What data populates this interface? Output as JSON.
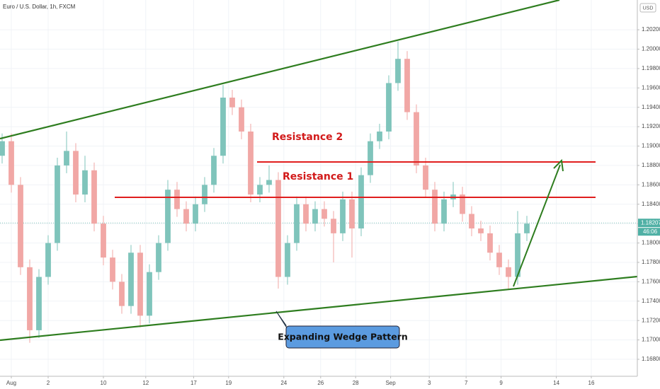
{
  "chart_data": {
    "type": "candlestick",
    "title": "Euro / U.S. Dollar, 1h, FXCM",
    "currency": "USD",
    "x": [
      -0.5,
      0,
      0.5,
      1,
      1.5,
      2,
      2.5,
      3,
      3.5,
      4,
      4.5,
      5,
      5.5,
      6,
      6.5,
      7,
      7.5,
      8,
      8.5,
      9,
      9.5,
      10,
      10.5,
      11,
      11.5,
      12,
      12.5,
      13,
      13.5,
      14,
      14.5,
      15,
      15.5,
      16,
      16.5,
      17,
      17.5,
      18,
      18.5,
      19,
      19.5,
      20,
      20.5,
      21,
      21.5,
      22,
      22.5,
      23,
      23.5,
      24,
      24.5,
      25,
      25.5,
      26,
      26.5,
      27,
      27.5,
      28
    ],
    "open": [
      1.189,
      1.1905,
      1.186,
      1.1775,
      1.171,
      1.1765,
      1.18,
      1.188,
      1.1895,
      1.185,
      1.1875,
      1.182,
      1.1785,
      1.176,
      1.1735,
      1.179,
      1.1725,
      1.177,
      1.18,
      1.1855,
      1.1835,
      1.182,
      1.184,
      1.186,
      1.189,
      1.195,
      1.194,
      1.1915,
      1.185,
      1.186,
      1.1865,
      1.1765,
      1.18,
      1.184,
      1.182,
      1.1835,
      1.1825,
      1.181,
      1.1845,
      1.1815,
      1.187,
      1.1905,
      1.1915,
      1.1965,
      1.199,
      1.1935,
      1.188,
      1.1855,
      1.182,
      1.1845,
      1.185,
      1.183,
      1.1815,
      1.181,
      1.179,
      1.1775,
      1.1765,
      1.181
    ],
    "high": [
      1.1913,
      1.1913,
      1.1868,
      1.1783,
      1.1773,
      1.1808,
      1.1888,
      1.1915,
      1.1903,
      1.189,
      1.1883,
      1.1828,
      1.1793,
      1.1768,
      1.1798,
      1.1798,
      1.1778,
      1.1808,
      1.1865,
      1.1863,
      1.1843,
      1.1848,
      1.1868,
      1.1898,
      1.1963,
      1.1958,
      1.1948,
      1.1923,
      1.1868,
      1.188,
      1.1873,
      1.1808,
      1.1848,
      1.1848,
      1.1843,
      1.1843,
      1.1833,
      1.1853,
      1.1853,
      1.1878,
      1.1913,
      1.1923,
      1.1973,
      1.2008,
      1.1998,
      1.1943,
      1.1888,
      1.1863,
      1.1853,
      1.1863,
      1.1858,
      1.1838,
      1.1823,
      1.1818,
      1.1798,
      1.1783,
      1.1833,
      1.1828
    ],
    "low": [
      1.1882,
      1.1852,
      1.1767,
      1.1697,
      1.1702,
      1.1757,
      1.1792,
      1.1872,
      1.1842,
      1.1842,
      1.1812,
      1.1777,
      1.1752,
      1.1727,
      1.1727,
      1.1713,
      1.1717,
      1.1762,
      1.1792,
      1.1827,
      1.1812,
      1.1812,
      1.1832,
      1.1852,
      1.1882,
      1.1932,
      1.1907,
      1.1842,
      1.1842,
      1.1852,
      1.1753,
      1.1757,
      1.1792,
      1.1812,
      1.1812,
      1.1817,
      1.178,
      1.1802,
      1.1785,
      1.1807,
      1.1862,
      1.1897,
      1.1907,
      1.1957,
      1.1927,
      1.1872,
      1.1847,
      1.1812,
      1.1812,
      1.1837,
      1.1822,
      1.1807,
      1.1802,
      1.1782,
      1.1767,
      1.1752,
      1.1757,
      1.1802
    ],
    "close": [
      1.1905,
      1.186,
      1.1775,
      1.171,
      1.1765,
      1.18,
      1.188,
      1.1895,
      1.185,
      1.1875,
      1.182,
      1.1785,
      1.176,
      1.1735,
      1.179,
      1.1725,
      1.177,
      1.18,
      1.1855,
      1.1835,
      1.182,
      1.184,
      1.186,
      1.189,
      1.195,
      1.194,
      1.1915,
      1.185,
      1.186,
      1.1865,
      1.1765,
      1.18,
      1.184,
      1.182,
      1.1835,
      1.1825,
      1.181,
      1.1845,
      1.1815,
      1.187,
      1.1905,
      1.1915,
      1.1965,
      1.199,
      1.1935,
      1.188,
      1.1855,
      1.182,
      1.1845,
      1.185,
      1.183,
      1.1815,
      1.181,
      1.179,
      1.1775,
      1.1765,
      1.181,
      1.182
    ],
    "up_color": "#7fc4bb",
    "down_color": "#f1a7a5",
    "xlim": [
      -0.615,
      34.0
    ],
    "ylim": [
      1.16625,
      1.20507
    ],
    "xticks": [
      {
        "value": 0,
        "label": "Aug"
      },
      2,
      {
        "value": 5,
        "label": "10"
      },
      {
        "value": 7.3,
        "label": "12"
      },
      {
        "value": 9.9,
        "label": "17"
      },
      {
        "value": 11.8,
        "label": "19"
      },
      {
        "value": 14.8,
        "label": "24"
      },
      {
        "value": 16.8,
        "label": "26"
      },
      {
        "value": 18.7,
        "label": "28"
      },
      {
        "value": 20.6,
        "label": "Sep"
      },
      {
        "value": 22.7,
        "label": "3"
      },
      {
        "value": 24.7,
        "label": "7"
      },
      {
        "value": 26.6,
        "label": "9"
      },
      {
        "value": 29.6,
        "label": "14"
      },
      {
        "value": 31.5,
        "label": "16"
      }
    ],
    "yticks": [
      {
        "value": 1.168,
        "label": "1.16800"
      },
      {
        "value": 1.17,
        "label": "1.17000"
      },
      {
        "value": 1.172,
        "label": "1.17200"
      },
      {
        "value": 1.174,
        "label": "1.17400"
      },
      {
        "value": 1.176,
        "label": "1.17600"
      },
      {
        "value": 1.178,
        "label": "1.17800"
      },
      {
        "value": 1.18,
        "label": "1.18000"
      },
      {
        "value": 1.182,
        "label": "1.18200"
      },
      {
        "value": 1.184,
        "label": "1.18400"
      },
      {
        "value": 1.186,
        "label": "1.18600"
      },
      {
        "value": 1.188,
        "label": "1.18800"
      },
      {
        "value": 1.19,
        "label": "1.19000"
      },
      {
        "value": 1.192,
        "label": "1.19200"
      },
      {
        "value": 1.194,
        "label": "1.19400"
      },
      {
        "value": 1.196,
        "label": "1.19600"
      },
      {
        "value": 1.198,
        "label": "1.19800"
      },
      {
        "value": 1.2,
        "label": "1.20000"
      },
      {
        "value": 1.202,
        "label": "1.20200"
      }
    ],
    "grid": true,
    "last_price": 1.18207,
    "countdown": "46:06",
    "annotations": [
      "Resistance 2",
      "Resistance 1",
      "Expanding Wedge Pattern"
    ]
  }
}
